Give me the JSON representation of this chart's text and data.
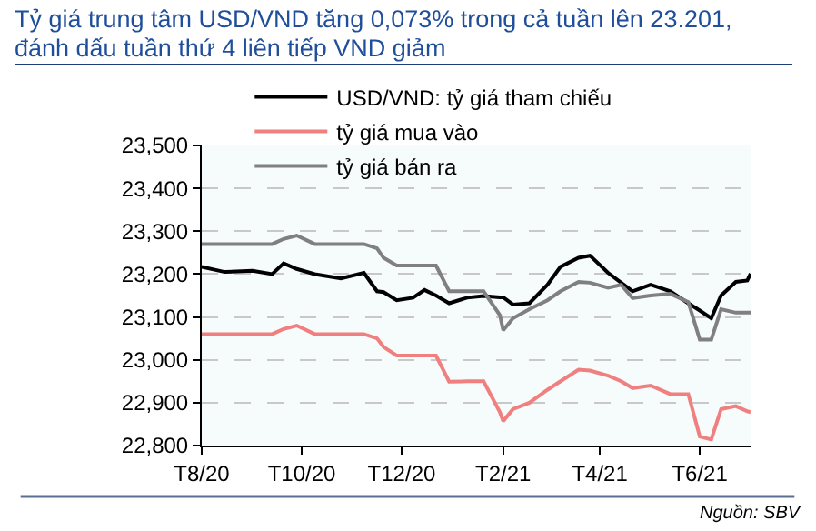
{
  "chart_data": {
    "type": "line",
    "title": "Tỷ giá trung tâm USD/VND tăng 0,073% trong cả tuần lên 23.201, đánh dấu tuần thứ 4 liên tiếp VND giảm",
    "x": [
      "2020-08-01",
      "2020-08-15",
      "2020-09-01",
      "2020-09-13",
      "2020-09-20",
      "2020-09-28",
      "2020-10-09",
      "2020-10-25",
      "2020-11-08",
      "2020-11-16",
      "2020-11-20",
      "2020-11-28",
      "2020-12-08",
      "2020-12-15",
      "2020-12-22",
      "2020-12-30",
      "2021-01-10",
      "2021-01-20",
      "2021-01-30",
      "2021-02-01",
      "2021-02-07",
      "2021-02-17",
      "2021-02-28",
      "2021-03-08",
      "2021-03-19",
      "2021-03-26",
      "2021-04-06",
      "2021-04-14",
      "2021-04-21",
      "2021-05-02",
      "2021-05-14",
      "2021-05-25",
      "2021-06-01",
      "2021-06-08",
      "2021-06-14",
      "2021-06-23",
      "2021-06-30",
      "2021-07-02"
    ],
    "series": [
      {
        "name": "USD/VND: tỷ giá tham chiếu",
        "color": "#000000",
        "values": [
          23217,
          23205,
          23208,
          23200,
          23225,
          23212,
          23200,
          23190,
          23203,
          23160,
          23158,
          23139,
          23145,
          23163,
          23150,
          23132,
          23145,
          23149,
          23146,
          23146,
          23129,
          23132,
          23175,
          23217,
          23238,
          23243,
          23203,
          23180,
          23160,
          23175,
          23160,
          23132,
          23115,
          23097,
          23150,
          23182,
          23185,
          23201
        ]
      },
      {
        "name": "tỷ giá mua vào",
        "color": "#f08080",
        "values": [
          23060,
          23060,
          23060,
          23060,
          23072,
          23080,
          23060,
          23060,
          23060,
          23050,
          23030,
          23010,
          23010,
          23010,
          23010,
          22949,
          22950,
          22950,
          22878,
          22857,
          22885,
          22900,
          22930,
          22950,
          22977,
          22975,
          22963,
          22950,
          22934,
          22940,
          22920,
          22920,
          22821,
          22814,
          22885,
          22892,
          22880,
          22878
        ]
      },
      {
        "name": "tỷ giá bán ra",
        "color": "#808080",
        "values": [
          23270,
          23270,
          23270,
          23270,
          23282,
          23290,
          23270,
          23270,
          23270,
          23260,
          23238,
          23220,
          23220,
          23220,
          23220,
          23160,
          23160,
          23160,
          23104,
          23069,
          23097,
          23118,
          23139,
          23160,
          23182,
          23180,
          23168,
          23175,
          23144,
          23150,
          23154,
          23135,
          23047,
          23047,
          23118,
          23110,
          23110,
          23110
        ]
      }
    ],
    "xlim": [
      "2020-08-01",
      "2021-07-02"
    ],
    "xticks": [
      {
        "value": "2020-08-01",
        "label": "T8/20"
      },
      {
        "value": "2020-10-01",
        "label": "T10/20"
      },
      {
        "value": "2020-12-01",
        "label": "T12/20"
      },
      {
        "value": "2021-02-01",
        "label": "T2/21"
      },
      {
        "value": "2021-04-01",
        "label": "T4/21"
      },
      {
        "value": "2021-06-01",
        "label": "T6/21"
      }
    ],
    "ylim": [
      22800,
      23500
    ],
    "yticks": [
      {
        "value": 22800,
        "label": "22,800"
      },
      {
        "value": 22900,
        "label": "22,900"
      },
      {
        "value": 23000,
        "label": "23,000"
      },
      {
        "value": 23100,
        "label": "23,100"
      },
      {
        "value": 23200,
        "label": "23,200"
      },
      {
        "value": 23300,
        "label": "23,300"
      },
      {
        "value": 23400,
        "label": "23,400"
      },
      {
        "value": 23500,
        "label": "23,500"
      }
    ],
    "grid": "y",
    "legend": "top",
    "annotations": [
      "Nguồn: SBV"
    ]
  }
}
